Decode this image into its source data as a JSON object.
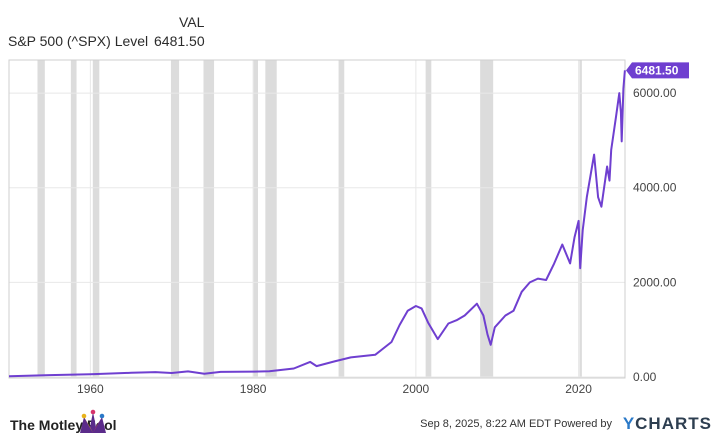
{
  "legend": {
    "column_header": "VAL",
    "series_name": "S&P 500 (^SPX) Level",
    "series_value": "6481.50"
  },
  "footer": {
    "brand": "The Motley Fool",
    "timestamp": "Sep 8, 2025, 8:22 AM EDT",
    "powered_by": "Powered by",
    "ycharts_y": "Y",
    "ycharts_rest": "CHARTS"
  },
  "colors": {
    "series": "#6f3fd0",
    "recession_band": "#dcdcdc",
    "grid": "#e8e8e8",
    "axis_text": "#444444"
  },
  "chart_data": {
    "type": "line",
    "title": "",
    "xlabel": "",
    "ylabel": "",
    "xlim": [
      1950,
      2025.7
    ],
    "ylim": [
      0,
      6700
    ],
    "x_ticks": [
      1960,
      1980,
      2000,
      2020
    ],
    "x_tick_labels": [
      "1960",
      "1980",
      "2000",
      "2020"
    ],
    "y_ticks": [
      0,
      2000,
      4000,
      6000
    ],
    "y_tick_labels": [
      "0.00",
      "2000.00",
      "4000.00",
      "6000.00"
    ],
    "grid": true,
    "y_axis_side": "right",
    "last_value_label": "6481.50",
    "recession_bands": [
      [
        1953.5,
        1954.4
      ],
      [
        1957.6,
        1958.3
      ],
      [
        1960.3,
        1961.1
      ],
      [
        1969.9,
        1970.9
      ],
      [
        1973.9,
        1975.2
      ],
      [
        1980.0,
        1980.6
      ],
      [
        1981.5,
        1982.9
      ],
      [
        1990.5,
        1991.2
      ],
      [
        2001.2,
        2001.9
      ],
      [
        2007.9,
        2009.5
      ],
      [
        2020.1,
        2020.4
      ]
    ],
    "series": [
      {
        "name": "S&P 500 (^SPX) Level",
        "points": [
          [
            1950,
            17
          ],
          [
            1955,
            40
          ],
          [
            1960,
            58
          ],
          [
            1965,
            88
          ],
          [
            1968,
            103
          ],
          [
            1970,
            84
          ],
          [
            1972,
            118
          ],
          [
            1974,
            68
          ],
          [
            1976,
            107
          ],
          [
            1980,
            115
          ],
          [
            1982,
            120
          ],
          [
            1985,
            180
          ],
          [
            1987,
            320
          ],
          [
            1987.8,
            230
          ],
          [
            1990,
            330
          ],
          [
            1992,
            415
          ],
          [
            1995,
            470
          ],
          [
            1997,
            740
          ],
          [
            1998,
            1100
          ],
          [
            1999,
            1400
          ],
          [
            2000,
            1500
          ],
          [
            2000.7,
            1450
          ],
          [
            2001.5,
            1150
          ],
          [
            2002.7,
            800
          ],
          [
            2004,
            1130
          ],
          [
            2005,
            1200
          ],
          [
            2006,
            1300
          ],
          [
            2007.5,
            1550
          ],
          [
            2008.3,
            1300
          ],
          [
            2008.8,
            900
          ],
          [
            2009.2,
            680
          ],
          [
            2009.7,
            1050
          ],
          [
            2011,
            1300
          ],
          [
            2012,
            1400
          ],
          [
            2013,
            1800
          ],
          [
            2014,
            2000
          ],
          [
            2015,
            2080
          ],
          [
            2016,
            2050
          ],
          [
            2017,
            2400
          ],
          [
            2018,
            2800
          ],
          [
            2018.95,
            2400
          ],
          [
            2019.5,
            2950
          ],
          [
            2020.0,
            3300
          ],
          [
            2020.2,
            2300
          ],
          [
            2020.5,
            3100
          ],
          [
            2021,
            3800
          ],
          [
            2021.9,
            4700
          ],
          [
            2022.4,
            3800
          ],
          [
            2022.8,
            3600
          ],
          [
            2023.5,
            4450
          ],
          [
            2023.8,
            4150
          ],
          [
            2024,
            4800
          ],
          [
            2024.6,
            5500
          ],
          [
            2025.0,
            6000
          ],
          [
            2025.2,
            5600
          ],
          [
            2025.3,
            4980
          ],
          [
            2025.5,
            6100
          ],
          [
            2025.69,
            6481.5
          ]
        ]
      }
    ]
  }
}
